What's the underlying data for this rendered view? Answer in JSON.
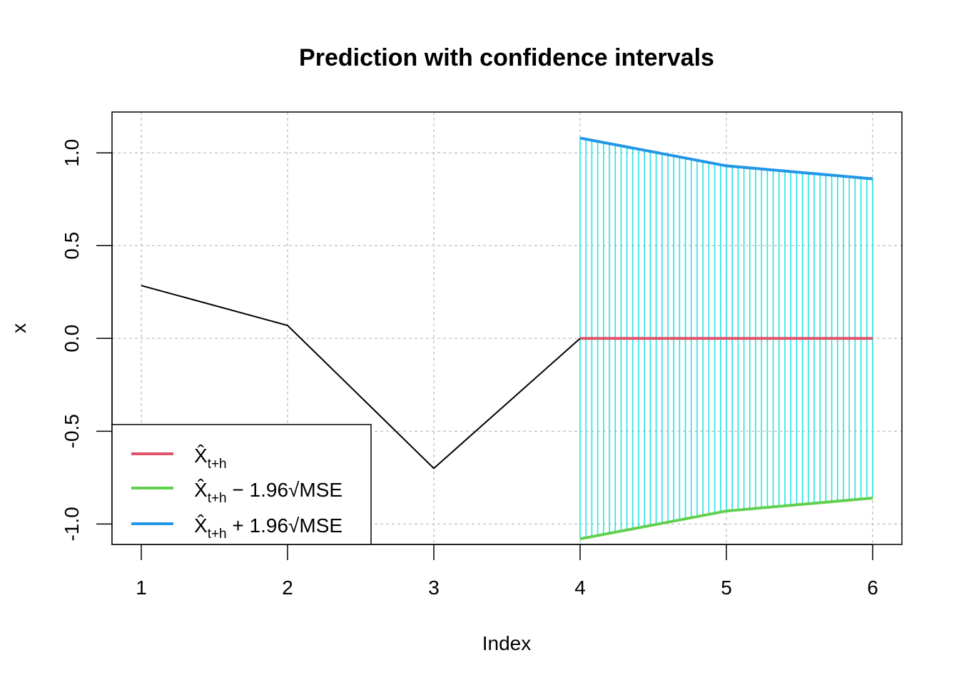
{
  "chart_data": {
    "type": "line",
    "title": "Prediction with confidence intervals",
    "xlabel": "Index",
    "ylabel": "x",
    "xlim": [
      0.8,
      6.2
    ],
    "ylim": [
      -1.11,
      1.22
    ],
    "x_ticks": [
      "1",
      "2",
      "3",
      "4",
      "5",
      "6"
    ],
    "y_ticks": [
      "-1.0",
      "-0.5",
      "0.0",
      "0.5",
      "1.0"
    ],
    "grid": true,
    "legend_position": "bottom-left",
    "observed": {
      "x": [
        1,
        2,
        3,
        4
      ],
      "y": [
        0.285,
        0.07,
        -0.7,
        0.0
      ],
      "color": "#000000"
    },
    "series": [
      {
        "name": "X̂t+h",
        "x": [
          4,
          5,
          6
        ],
        "y": [
          0.0,
          0.0,
          0.0
        ],
        "color": "#DF536B"
      },
      {
        "name": "X̂t+h − 1.96√MSE",
        "x": [
          4,
          5,
          6
        ],
        "y": [
          -1.08,
          -0.93,
          -0.86
        ],
        "color": "#61D04F"
      },
      {
        "name": "X̂t+h + 1.96√MSE",
        "x": [
          4,
          5,
          6
        ],
        "y": [
          1.08,
          0.93,
          0.86
        ],
        "color": "#2297E6"
      }
    ],
    "interval_fill_color": "#28E2E5",
    "legend": {
      "entries": [
        {
          "base": "X̂",
          "sub": "t+h",
          "suffix": "",
          "color": "#DF536B"
        },
        {
          "base": "X̂",
          "sub": "t+h",
          "suffix": " − 1.96√MSE",
          "color": "#61D04F"
        },
        {
          "base": "X̂",
          "sub": "t+h",
          "suffix": " + 1.96√MSE",
          "color": "#2297E6"
        }
      ]
    }
  }
}
